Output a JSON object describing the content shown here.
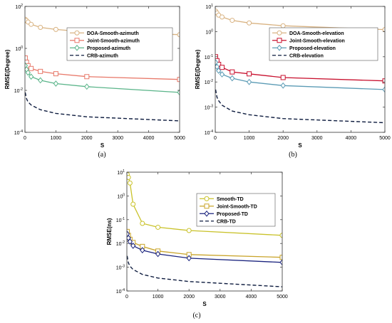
{
  "chart_data": [
    {
      "type": "line",
      "caption": "(a)",
      "xlabel": "S",
      "ylabel": "RMSE(Degree)",
      "xlim": [
        0,
        5000
      ],
      "ylim": [
        0.0001,
        100
      ],
      "yscale": "log",
      "xticks": [
        0,
        1000,
        2000,
        3000,
        4000,
        5000
      ],
      "yticks": [
        {
          "value": 0.0001,
          "base": "10",
          "exp": "-4"
        },
        {
          "value": 0.01,
          "base": "10",
          "exp": "-2"
        },
        {
          "value": 1,
          "base": "10",
          "exp": "0"
        },
        {
          "value": 100,
          "base": "10",
          "exp": "2"
        }
      ],
      "grid": false,
      "legend_position": "top-right",
      "series": [
        {
          "name": "DOA-Smooth-azimuth",
          "color": "#d9b382",
          "marker": "circle",
          "x": [
            10,
            50,
            100,
            200,
            500,
            1000,
            2000,
            5000
          ],
          "y": [
            24,
            21,
            18,
            14,
            10,
            8,
            6,
            4.5
          ]
        },
        {
          "name": "Joint-Smooth-azimuth",
          "color": "#e8796a",
          "marker": "square",
          "x": [
            10,
            50,
            100,
            200,
            500,
            1000,
            2000,
            5000
          ],
          "y": [
            0.35,
            0.22,
            0.15,
            0.11,
            0.08,
            0.062,
            0.045,
            0.033
          ]
        },
        {
          "name": "Proposed-azimuth",
          "color": "#5bb58a",
          "marker": "diamond",
          "x": [
            10,
            50,
            100,
            200,
            500,
            1000,
            2000,
            5000
          ],
          "y": [
            0.15,
            0.1,
            0.07,
            0.045,
            0.03,
            0.021,
            0.015,
            0.008
          ]
        },
        {
          "name": "CRB-azimuth",
          "color": "#0d1b3e",
          "marker": "none",
          "dashed": true,
          "x": [
            10,
            50,
            100,
            200,
            500,
            1000,
            2000,
            5000
          ],
          "y": [
            0.008,
            0.004,
            0.0028,
            0.002,
            0.0012,
            0.0008,
            0.00055,
            0.00035
          ]
        }
      ]
    },
    {
      "type": "line",
      "caption": "(b)",
      "xlabel": "S",
      "ylabel": "RMSE(Degree)",
      "xlim": [
        0,
        5000
      ],
      "ylim": [
        0.0001,
        10
      ],
      "yscale": "log",
      "xticks": [
        0,
        1000,
        2000,
        3000,
        4000,
        5000
      ],
      "yticks": [
        {
          "value": 0.0001,
          "base": "10",
          "exp": "-4"
        },
        {
          "value": 0.001,
          "base": "10",
          "exp": "-3"
        },
        {
          "value": 0.01,
          "base": "10",
          "exp": "-2"
        },
        {
          "value": 0.1,
          "base": "10",
          "exp": "-1"
        },
        {
          "value": 1,
          "base": "10",
          "exp": "0"
        },
        {
          "value": 10,
          "base": "10",
          "exp": "1"
        }
      ],
      "grid": false,
      "legend_position": "top-right",
      "series": [
        {
          "name": "DOA-Smooth-elevation",
          "color": "#d9b382",
          "marker": "circle",
          "x": [
            10,
            50,
            100,
            200,
            500,
            1000,
            2000,
            5000
          ],
          "y": [
            6.5,
            5.5,
            4.5,
            3.8,
            2.8,
            2.2,
            1.7,
            1.2
          ]
        },
        {
          "name": "Joint-Smooth-elevation",
          "color": "#c8102e",
          "marker": "square",
          "x": [
            10,
            50,
            100,
            200,
            500,
            1000,
            2000,
            5000
          ],
          "y": [
            0.1,
            0.07,
            0.05,
            0.038,
            0.025,
            0.021,
            0.015,
            0.011
          ]
        },
        {
          "name": "Proposed-elevation",
          "color": "#5b9bb5",
          "marker": "diamond",
          "x": [
            10,
            50,
            100,
            200,
            500,
            1000,
            2000,
            5000
          ],
          "y": [
            0.06,
            0.04,
            0.028,
            0.02,
            0.014,
            0.01,
            0.0072,
            0.005
          ]
        },
        {
          "name": "CRB-elevation",
          "color": "#0d1b3e",
          "marker": "none",
          "dashed": true,
          "x": [
            10,
            50,
            100,
            200,
            500,
            1000,
            2000,
            5000
          ],
          "y": [
            0.005,
            0.0025,
            0.0018,
            0.0012,
            0.0007,
            0.0005,
            0.00035,
            0.00024
          ]
        }
      ]
    },
    {
      "type": "line",
      "caption": "(c)",
      "xlabel": "S",
      "ylabel": "RMSE(ns)",
      "xlim": [
        0,
        5000
      ],
      "ylim": [
        0.0001,
        10
      ],
      "yscale": "log",
      "xticks": [
        0,
        1000,
        2000,
        3000,
        4000,
        5000
      ],
      "yticks": [
        {
          "value": 0.0001,
          "base": "10",
          "exp": "-4"
        },
        {
          "value": 0.001,
          "base": "10",
          "exp": "-3"
        },
        {
          "value": 0.01,
          "base": "10",
          "exp": "-2"
        },
        {
          "value": 0.1,
          "base": "10",
          "exp": "-1"
        },
        {
          "value": 1,
          "base": "10",
          "exp": "0"
        },
        {
          "value": 10,
          "base": "10",
          "exp": "1"
        }
      ],
      "grid": false,
      "legend_position": "top-right",
      "series": [
        {
          "name": "Smooth-TD",
          "color": "#c9c22a",
          "marker": "circle",
          "x": [
            10,
            50,
            100,
            200,
            500,
            1000,
            2000,
            5000
          ],
          "y": [
            8,
            6,
            3.5,
            0.45,
            0.07,
            0.048,
            0.035,
            0.022
          ]
        },
        {
          "name": "Joint-Smooth-TD",
          "color": "#c9a42a",
          "marker": "square",
          "x": [
            10,
            50,
            100,
            200,
            500,
            1000,
            2000,
            5000
          ],
          "y": [
            0.032,
            0.022,
            0.015,
            0.011,
            0.0075,
            0.0048,
            0.0034,
            0.0026
          ]
        },
        {
          "name": "Proposed-TD",
          "color": "#1a237e",
          "marker": "diamond",
          "x": [
            10,
            50,
            100,
            200,
            500,
            1000,
            2000,
            5000
          ],
          "y": [
            0.025,
            0.017,
            0.012,
            0.008,
            0.0052,
            0.0036,
            0.0024,
            0.0016
          ]
        },
        {
          "name": "CRB-TD",
          "color": "#0d1b3e",
          "marker": "none",
          "dashed": true,
          "x": [
            10,
            50,
            100,
            200,
            500,
            1000,
            2000,
            5000
          ],
          "y": [
            0.003,
            0.0015,
            0.0011,
            0.0008,
            0.0005,
            0.00035,
            0.00025,
            0.00015
          ]
        }
      ]
    }
  ]
}
